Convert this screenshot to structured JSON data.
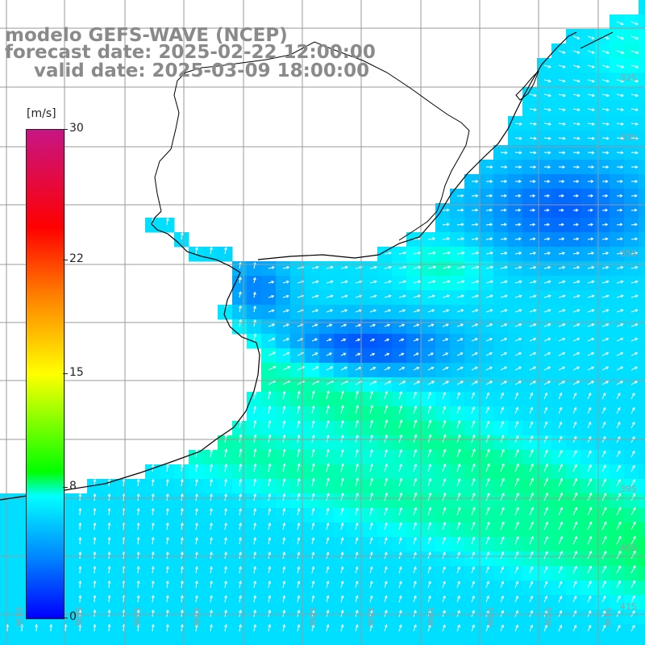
{
  "title": {
    "line1": "modelo GEFS-WAVE (NCEP)",
    "line2": "forecast date: 2025-02-22 12:00:00",
    "line3": "valid date: 2025-03-09 18:00:00"
  },
  "colorbar": {
    "unit": "[m/s]",
    "ticks": [
      {
        "label": "30",
        "value": 30
      },
      {
        "label": "22",
        "value": 22
      },
      {
        "label": "15",
        "value": 15
      },
      {
        "label": "8",
        "value": 8
      },
      {
        "label": "0",
        "value": 0
      }
    ]
  },
  "lat_labels": [
    "32S",
    "33S",
    "35S",
    "39S",
    "40S",
    "41S"
  ],
  "lon_labels": [
    "61W",
    "60W",
    "59W",
    "58W",
    "56W",
    "55W",
    "54W",
    "53W",
    "52W",
    "51W"
  ],
  "colors": {
    "land": "#ffffff",
    "grid": "#9a9a9a",
    "coast": "#000000",
    "arrows": "#ffffff",
    "title": "#8a8a8a"
  }
}
